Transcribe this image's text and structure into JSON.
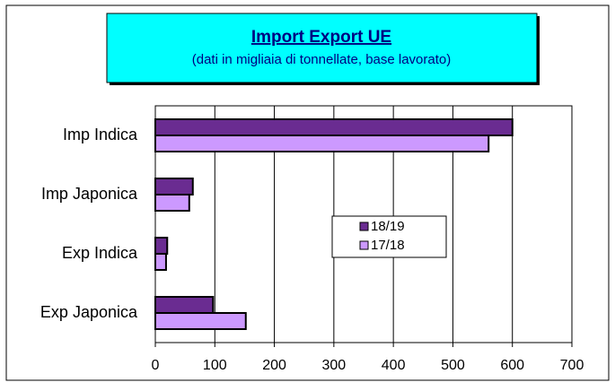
{
  "chart_data": {
    "type": "barh",
    "title": "Import Export UE",
    "subtitle": "(dati in migliaia di tonnellate, base lavorato)",
    "categories": [
      "Imp Indica",
      "Imp Japonica",
      "Exp Indica",
      "Exp Japonica"
    ],
    "series": [
      {
        "name": "18/19",
        "color": "#6a2c91",
        "values": [
          600,
          63,
          20,
          97
        ]
      },
      {
        "name": "17/18",
        "color": "#cc99ff",
        "values": [
          560,
          57,
          18,
          152
        ]
      }
    ],
    "xlim": [
      0,
      700
    ],
    "xticks": [
      0,
      100,
      200,
      300,
      400,
      500,
      600,
      700
    ],
    "grid": true
  }
}
